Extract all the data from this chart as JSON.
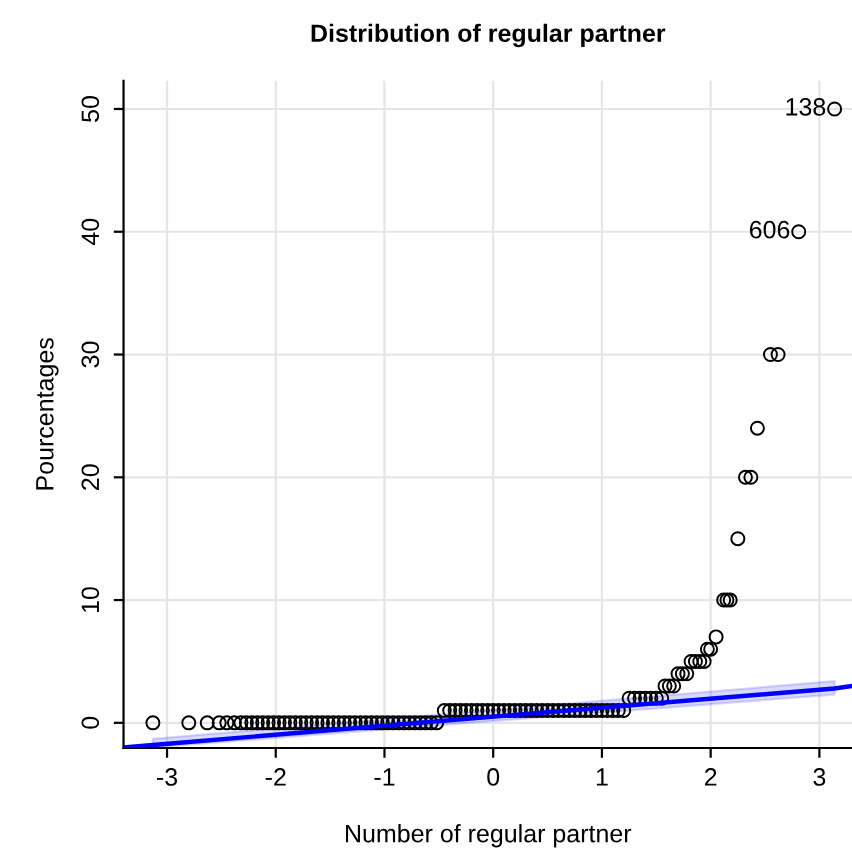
{
  "chart_data": {
    "type": "scatter",
    "title": "Distribution of regular partner",
    "xlabel": "Number of regular partner",
    "ylabel": "Pourcentages",
    "xlim": [
      -3.4,
      3.3
    ],
    "ylim": [
      -2.05,
      52.3
    ],
    "xticks": [
      -3,
      -2,
      -1,
      0,
      1,
      2,
      3
    ],
    "yticks": [
      0,
      10,
      20,
      30,
      40,
      50
    ],
    "grid": true,
    "marker": "circle",
    "series": [
      {
        "color": "#000000",
        "x": [
          -3.13,
          -2.8,
          -2.63,
          -2.52,
          -2.45,
          -2.38,
          -2.32,
          -2.27,
          -2.22,
          -2.17,
          -2.12,
          -2.07,
          -2.02,
          -1.97,
          -1.92,
          -1.87,
          -1.82,
          -1.77,
          -1.72,
          -1.67,
          -1.62,
          -1.57,
          -1.52,
          -1.47,
          -1.42,
          -1.37,
          -1.32,
          -1.27,
          -1.22,
          -1.17,
          -1.12,
          -1.07,
          -1.02,
          -0.97,
          -0.92,
          -0.87,
          -0.82,
          -0.77,
          -0.72,
          -0.67,
          -0.62,
          -0.57,
          -0.52,
          -0.45,
          -0.4,
          -0.35,
          -0.3,
          -0.25,
          -0.2,
          -0.15,
          -0.1,
          -0.05,
          0.0,
          0.05,
          0.1,
          0.15,
          0.2,
          0.25,
          0.3,
          0.35,
          0.4,
          0.45,
          0.5,
          0.55,
          0.6,
          0.65,
          0.7,
          0.75,
          0.8,
          0.85,
          0.9,
          0.95,
          1.0,
          1.05,
          1.1,
          1.15,
          1.2,
          1.25,
          1.3,
          1.35,
          1.4,
          1.45,
          1.5,
          1.55,
          1.58,
          1.62,
          1.66,
          1.7,
          1.74,
          1.78,
          1.82,
          1.86,
          1.9,
          1.94,
          1.97,
          2.0,
          2.05,
          2.12,
          2.15,
          2.18,
          2.25,
          2.32,
          2.37,
          2.43,
          2.55,
          2.62,
          2.81,
          3.14
        ],
        "values": [
          0,
          0,
          0,
          0,
          0,
          0,
          0,
          0,
          0,
          0,
          0,
          0,
          0,
          0,
          0,
          0,
          0,
          0,
          0,
          0,
          0,
          0,
          0,
          0,
          0,
          0,
          0,
          0,
          0,
          0,
          0,
          0,
          0,
          0,
          0,
          0,
          0,
          0,
          0,
          0,
          0,
          0,
          0,
          1,
          1,
          1,
          1,
          1,
          1,
          1,
          1,
          1,
          1,
          1,
          1,
          1,
          1,
          1,
          1,
          1,
          1,
          1,
          1,
          1,
          1,
          1,
          1,
          1,
          1,
          1,
          1,
          1,
          1,
          1,
          1,
          1,
          1,
          2,
          2,
          2,
          2,
          2,
          2,
          2,
          3,
          3,
          3,
          4,
          4,
          4,
          5,
          5,
          5,
          5,
          6,
          6,
          7,
          10,
          10,
          10,
          15,
          20,
          20,
          24,
          30,
          30,
          40,
          50
        ]
      },
      {
        "type": "line",
        "color": "#0000ff",
        "marker": "none",
        "x": [
          -3.4,
          -3.13,
          3.14,
          3.3
        ],
        "values": [
          -2.0,
          -1.8,
          2.8,
          3.0
        ],
        "lower": [
          null,
          -2.0,
          2.3,
          null
        ],
        "upper": [
          null,
          -1.3,
          3.4,
          null
        ]
      }
    ],
    "annotations": [
      {
        "text": "138",
        "x": 3.14,
        "y": 50
      },
      {
        "text": "606",
        "x": 2.81,
        "y": 40
      }
    ]
  }
}
